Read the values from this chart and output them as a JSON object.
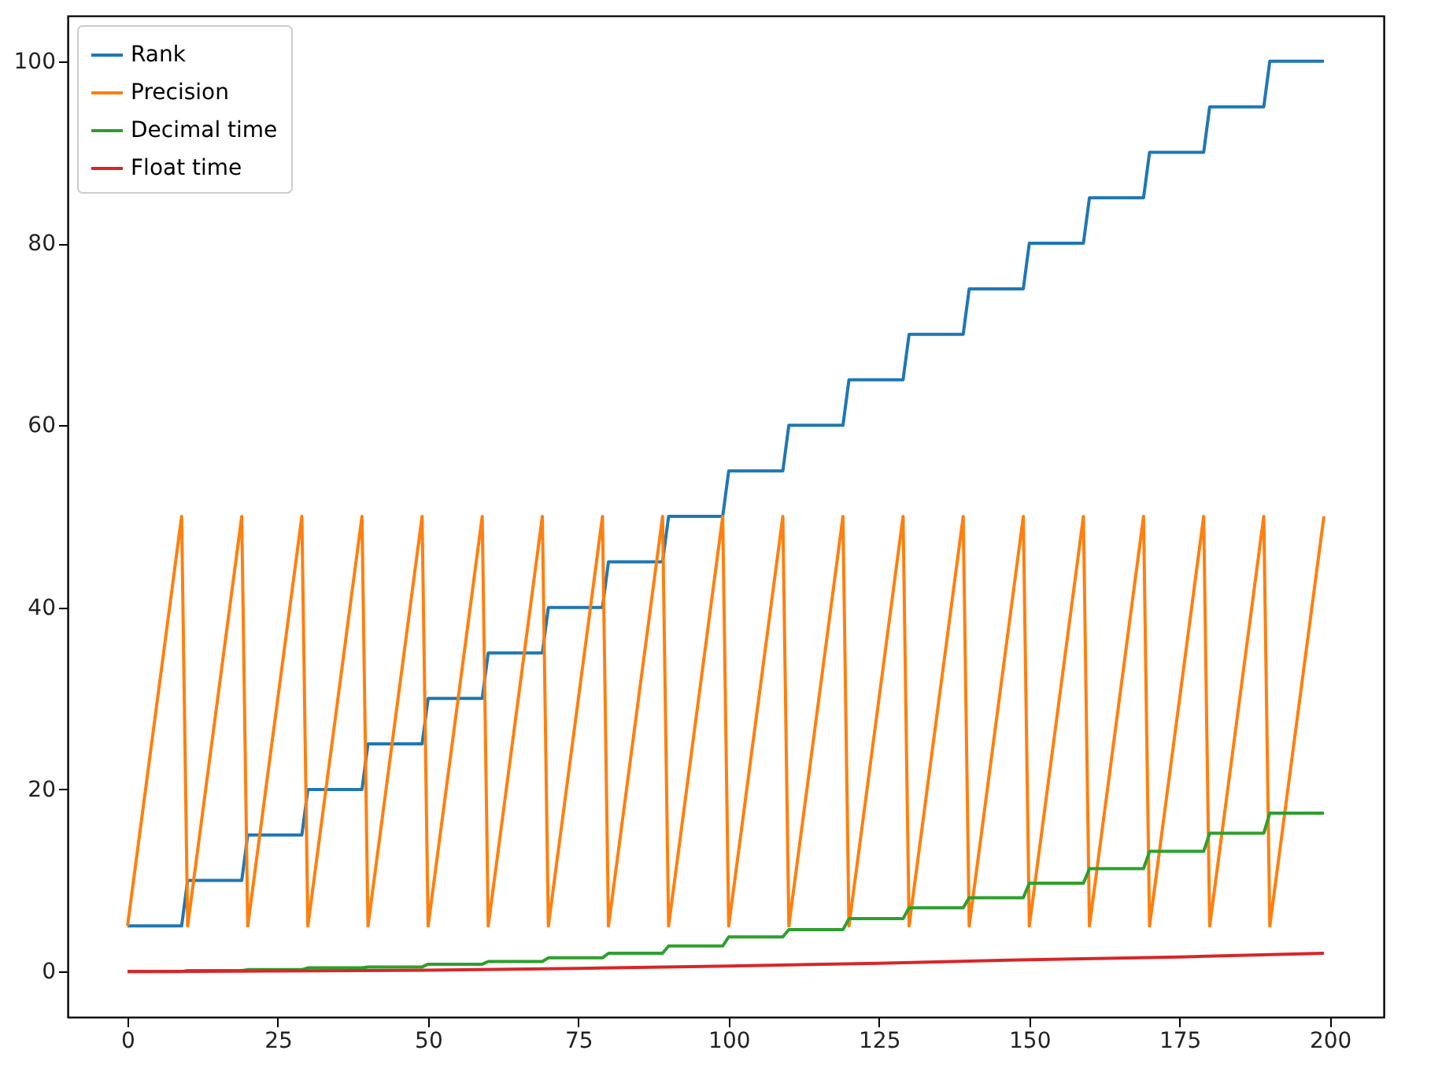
{
  "chart_data": {
    "type": "line",
    "xlim": [
      -9.95,
      208.95
    ],
    "ylim": [
      -5,
      105
    ],
    "xticks": [
      0,
      25,
      50,
      75,
      100,
      125,
      150,
      175,
      200
    ],
    "yticks": [
      0,
      20,
      40,
      60,
      80,
      100
    ],
    "legend": "top left",
    "series": [
      {
        "name": "Rank",
        "color": "#1f77b4",
        "x": [
          0,
          9,
          10,
          19,
          20,
          29,
          30,
          39,
          40,
          49,
          50,
          59,
          60,
          69,
          70,
          79,
          80,
          89,
          90,
          99,
          100,
          109,
          110,
          119,
          120,
          129,
          130,
          139,
          140,
          149,
          150,
          159,
          160,
          169,
          170,
          179,
          180,
          189,
          190,
          199
        ],
        "values": [
          5,
          5,
          10,
          10,
          15,
          15,
          20,
          20,
          25,
          25,
          30,
          30,
          35,
          35,
          40,
          40,
          45,
          45,
          50,
          50,
          55,
          55,
          60,
          60,
          65,
          65,
          70,
          70,
          75,
          75,
          80,
          80,
          85,
          85,
          90,
          90,
          95,
          95,
          100,
          100
        ]
      },
      {
        "name": "Precision",
        "color": "#ff7f0e",
        "x": [
          0,
          9,
          10,
          19,
          20,
          29,
          30,
          39,
          40,
          49,
          50,
          59,
          60,
          69,
          70,
          79,
          80,
          89,
          90,
          99,
          100,
          109,
          110,
          119,
          120,
          129,
          130,
          139,
          140,
          149,
          150,
          159,
          160,
          169,
          170,
          179,
          180,
          189,
          190,
          199
        ],
        "values": [
          5,
          50,
          5,
          50,
          5,
          50,
          5,
          50,
          5,
          50,
          5,
          50,
          5,
          50,
          5,
          50,
          5,
          50,
          5,
          50,
          5,
          50,
          5,
          50,
          5,
          50,
          5,
          50,
          5,
          50,
          5,
          50,
          5,
          50,
          5,
          50,
          5,
          50,
          5,
          50
        ]
      },
      {
        "name": "Decimal time",
        "color": "#2ca02c",
        "x": [
          0,
          9,
          10,
          19,
          20,
          29,
          30,
          39,
          40,
          49,
          50,
          59,
          60,
          69,
          70,
          79,
          80,
          89,
          90,
          99,
          100,
          109,
          110,
          119,
          120,
          129,
          130,
          139,
          140,
          149,
          150,
          159,
          160,
          169,
          170,
          179,
          180,
          189,
          190,
          199
        ],
        "values": [
          0,
          0,
          0.1,
          0.1,
          0.2,
          0.2,
          0.4,
          0.4,
          0.5,
          0.5,
          0.8,
          0.8,
          1.1,
          1.1,
          1.5,
          1.5,
          2.0,
          2.0,
          2.8,
          2.8,
          3.8,
          3.8,
          4.6,
          4.6,
          5.8,
          5.8,
          7.0,
          7.0,
          8.1,
          8.1,
          9.7,
          9.7,
          11.3,
          11.3,
          13.2,
          13.2,
          15.2,
          15.2,
          17.4,
          17.4
        ]
      },
      {
        "name": "Float time",
        "color": "#d62728",
        "x": [
          0,
          25,
          50,
          75,
          100,
          125,
          150,
          175,
          199
        ],
        "values": [
          0,
          0.05,
          0.15,
          0.35,
          0.6,
          0.9,
          1.3,
          1.6,
          2.0
        ]
      }
    ]
  }
}
